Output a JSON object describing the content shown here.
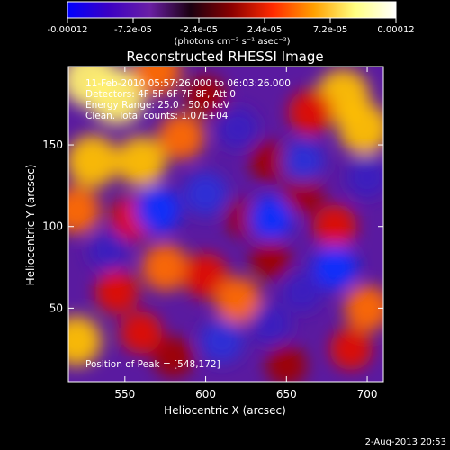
{
  "colorbar": {
    "tick_labels": [
      "-0.00012",
      "-7.2e-05",
      "-2.4e-05",
      "2.4e-05",
      "7.2e-05",
      "0.00012"
    ],
    "unit_label": "(photons cm⁻² s⁻¹ asec⁻²)",
    "colors": [
      "#0000ff",
      "#3b00c4",
      "#6a1fa5",
      "#1a0010",
      "#8b0000",
      "#ff2a00",
      "#ffa000",
      "#ffff80",
      "#ffffff"
    ]
  },
  "chart_data": {
    "type": "heatmap",
    "title": "Reconstructed RHESSI Image",
    "xlabel": "Heliocentric X (arcsec)",
    "ylabel": "Heliocentric Y (arcsec)",
    "xlim": [
      515,
      710
    ],
    "ylim": [
      5,
      198
    ],
    "x_ticks": [
      550,
      600,
      650,
      700
    ],
    "y_ticks": [
      50,
      100,
      150
    ],
    "value_range": [
      -0.00012,
      0.00012
    ],
    "annotations": [
      "11-Feb-2010 05:57:26.000 to 06:03:26.000",
      "Detectors: 4F 5F 6F 7F 8F, Att 0",
      "Energy Range: 25.0 - 50.0 keV",
      "Clean.  Total counts: 1.07E+04"
    ],
    "peak_label": "Position of Peak = [548,172]",
    "peak": [
      548,
      172
    ],
    "blobs": [
      {
        "x": 545,
        "y": 180,
        "v": 1.0
      },
      {
        "x": 528,
        "y": 190,
        "v": 0.9
      },
      {
        "x": 570,
        "y": 195,
        "v": 0.6
      },
      {
        "x": 600,
        "y": 180,
        "v": 0.35
      },
      {
        "x": 530,
        "y": 140,
        "v": 0.8
      },
      {
        "x": 560,
        "y": 140,
        "v": 0.7
      },
      {
        "x": 585,
        "y": 155,
        "v": 0.55
      },
      {
        "x": 520,
        "y": 110,
        "v": 0.6
      },
      {
        "x": 555,
        "y": 105,
        "v": 0.5
      },
      {
        "x": 575,
        "y": 75,
        "v": 0.6
      },
      {
        "x": 600,
        "y": 70,
        "v": 0.5
      },
      {
        "x": 620,
        "y": 55,
        "v": 0.55
      },
      {
        "x": 545,
        "y": 60,
        "v": 0.45
      },
      {
        "x": 520,
        "y": 30,
        "v": 0.7
      },
      {
        "x": 580,
        "y": 20,
        "v": 0.35
      },
      {
        "x": 560,
        "y": 35,
        "v": 0.4
      },
      {
        "x": 685,
        "y": 180,
        "v": 0.85
      },
      {
        "x": 698,
        "y": 160,
        "v": 0.75
      },
      {
        "x": 665,
        "y": 170,
        "v": 0.5
      },
      {
        "x": 660,
        "y": 120,
        "v": 0.35
      },
      {
        "x": 680,
        "y": 100,
        "v": 0.45
      },
      {
        "x": 640,
        "y": 140,
        "v": 0.35
      },
      {
        "x": 625,
        "y": 105,
        "v": 0.3
      },
      {
        "x": 700,
        "y": 50,
        "v": 0.55
      },
      {
        "x": 690,
        "y": 25,
        "v": 0.4
      },
      {
        "x": 650,
        "y": 15,
        "v": 0.35
      },
      {
        "x": 640,
        "y": 80,
        "v": 0.3
      },
      {
        "x": 570,
        "y": 110,
        "v": -0.55
      },
      {
        "x": 600,
        "y": 120,
        "v": -0.45
      },
      {
        "x": 620,
        "y": 160,
        "v": -0.35
      },
      {
        "x": 640,
        "y": 105,
        "v": -0.5
      },
      {
        "x": 660,
        "y": 140,
        "v": -0.4
      },
      {
        "x": 680,
        "y": 75,
        "v": -0.5
      },
      {
        "x": 700,
        "y": 130,
        "v": -0.35
      },
      {
        "x": 610,
        "y": 30,
        "v": -0.45
      },
      {
        "x": 640,
        "y": 40,
        "v": -0.35
      },
      {
        "x": 540,
        "y": 85,
        "v": -0.3
      },
      {
        "x": 660,
        "y": 60,
        "v": -0.3
      }
    ]
  },
  "footer": {
    "timestamp": "2-Aug-2013 20:53"
  }
}
